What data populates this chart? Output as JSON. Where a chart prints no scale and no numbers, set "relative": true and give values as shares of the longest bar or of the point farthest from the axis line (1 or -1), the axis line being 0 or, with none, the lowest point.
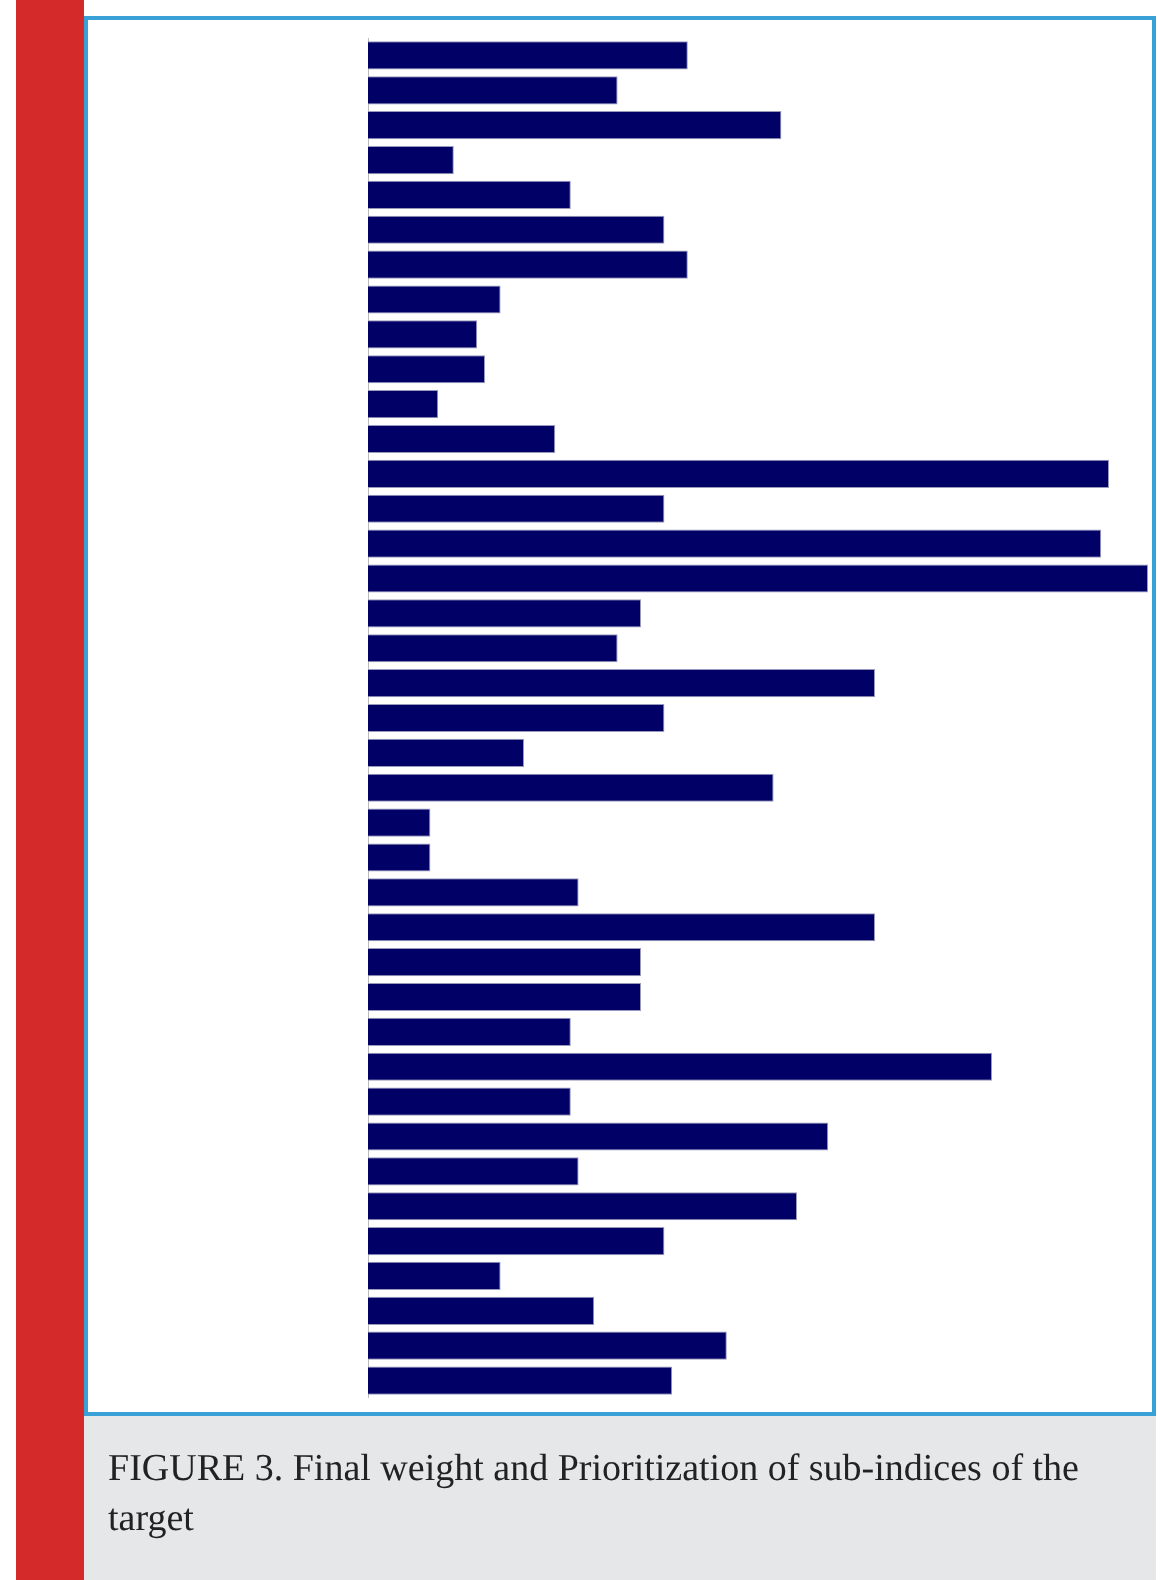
{
  "chart_data": {
    "type": "bar",
    "orientation": "horizontal",
    "relative": true,
    "title": "FIGURE 3. Final weight and Prioritization of sub-indices of the target",
    "categories": [
      null,
      null,
      null,
      null,
      null,
      null,
      null,
      null,
      null,
      null,
      null,
      null,
      null,
      null,
      null,
      null,
      null,
      null,
      null,
      null,
      null,
      null,
      null,
      null,
      null,
      null,
      null,
      null,
      null,
      null,
      null,
      null,
      null,
      null,
      null,
      null,
      null,
      null,
      null
    ],
    "values": [
      0.41,
      0.32,
      0.53,
      0.11,
      0.26,
      0.38,
      0.41,
      0.17,
      0.14,
      0.15,
      0.09,
      0.24,
      0.95,
      0.38,
      0.94,
      1,
      0.35,
      0.32,
      0.65,
      0.38,
      0.2,
      0.52,
      0.08,
      0.08,
      0.27,
      0.65,
      0.35,
      0.35,
      0.26,
      0.8,
      0.26,
      0.59,
      0.27,
      0.55,
      0.38,
      0.17,
      0.29,
      0.46,
      0.39
    ],
    "color": "#000066"
  }
}
